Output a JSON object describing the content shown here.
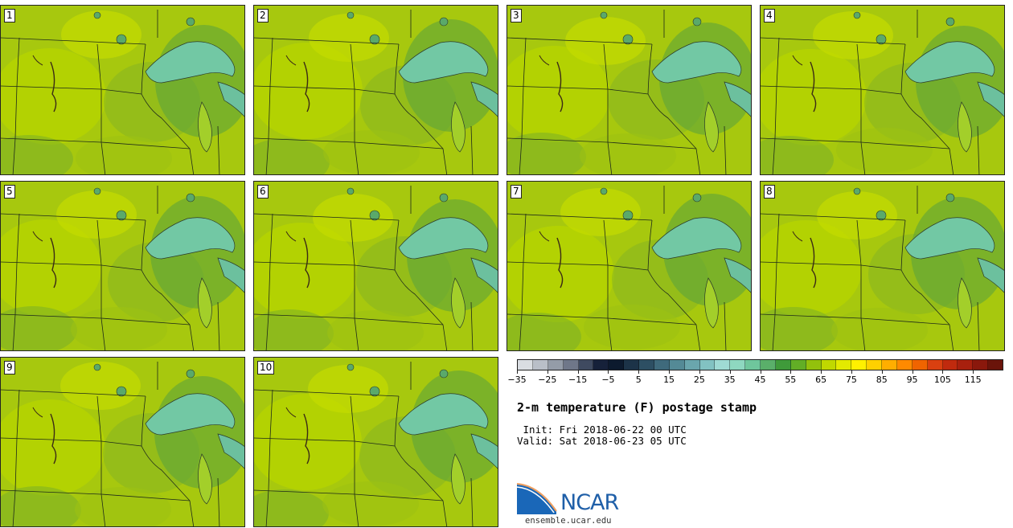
{
  "panels": [
    {
      "label": "1"
    },
    {
      "label": "2"
    },
    {
      "label": "3"
    },
    {
      "label": "4"
    },
    {
      "label": "5"
    },
    {
      "label": "6"
    },
    {
      "label": "7"
    },
    {
      "label": "8"
    },
    {
      "label": "9"
    },
    {
      "label": "10"
    }
  ],
  "colorbar": {
    "colors": [
      "#d9dde2",
      "#b9bfc8",
      "#949ca8",
      "#6f7789",
      "#3f4a60",
      "#16213a",
      "#0c1a2e",
      "#1c3348",
      "#2d4f63",
      "#3f6a7c",
      "#548a96",
      "#6aa6ad",
      "#82c2c2",
      "#9fdad4",
      "#8ed8c0",
      "#6fc69c",
      "#5aaf6a",
      "#3f9a3a",
      "#62ae26",
      "#93c10c",
      "#c0d800",
      "#e3ea00",
      "#fff000",
      "#ffd000",
      "#ffae00",
      "#ff8a00",
      "#f06400",
      "#d94010",
      "#c02a0e",
      "#a8200e",
      "#8a180c",
      "#6a140a"
    ],
    "tick_labels": [
      "−35",
      "−25",
      "−15",
      "−5",
      "5",
      "15",
      "25",
      "35",
      "45",
      "55",
      "65",
      "75",
      "85",
      "95",
      "105",
      "115"
    ]
  },
  "title": "2-m temperature (F) postage stamp",
  "init_line": " Init: Fri 2018-06-22 00 UTC",
  "valid_line": "Valid: Sat 2018-06-23 05 UTC",
  "logo": {
    "name": "NCAR",
    "url": "ensemble.ucar.edu"
  }
}
